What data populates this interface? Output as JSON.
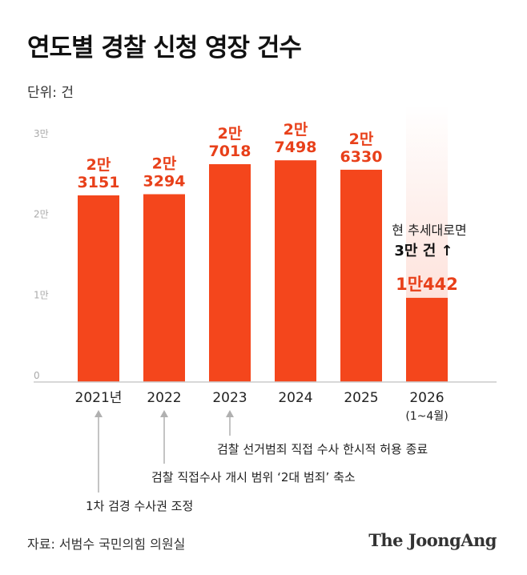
{
  "title": "연도별 경찰 신청 영장 건수",
  "unit_label": "단위: 건",
  "source": "자료: 서범수 국민의힘 의원실",
  "brand": "The JoongAng",
  "colors": {
    "bar": "#f4461c",
    "value_text": "#e8401a",
    "axis": "#cccccc",
    "tick_text": "#aaaaaa",
    "arrow": "#b0b0b0"
  },
  "chart_data": {
    "type": "bar",
    "categories": [
      "2021년",
      "2022",
      "2023",
      "2024",
      "2025",
      "2026"
    ],
    "category_sublabels": [
      "",
      "",
      "",
      "",
      "",
      "(1~4월)"
    ],
    "values": [
      23151,
      23294,
      27018,
      27498,
      26330,
      10442
    ],
    "value_labels": [
      [
        "2만",
        "3151"
      ],
      [
        "2만",
        "3294"
      ],
      [
        "2만",
        "7018"
      ],
      [
        "2만",
        "7498"
      ],
      [
        "2만",
        "6330"
      ],
      [
        "1만442"
      ]
    ],
    "ylim": [
      0,
      30000
    ],
    "yticks": [
      0,
      10000,
      20000,
      30000
    ],
    "ytick_labels": [
      "0",
      "1만",
      "2만",
      "3만"
    ],
    "projection": {
      "category": "2026",
      "line1": "현 추세대로면",
      "line2": "3만 건 ↑"
    },
    "annotations": [
      {
        "category": "2021년",
        "text": "1차 검경 수사권 조정"
      },
      {
        "category": "2022",
        "text": "검찰 직접수사 개시 범위 ‘2대 범죄’ 축소"
      },
      {
        "category": "2023",
        "text": "검찰 선거범죄 직접 수사 한시적 허용 종료"
      }
    ]
  }
}
